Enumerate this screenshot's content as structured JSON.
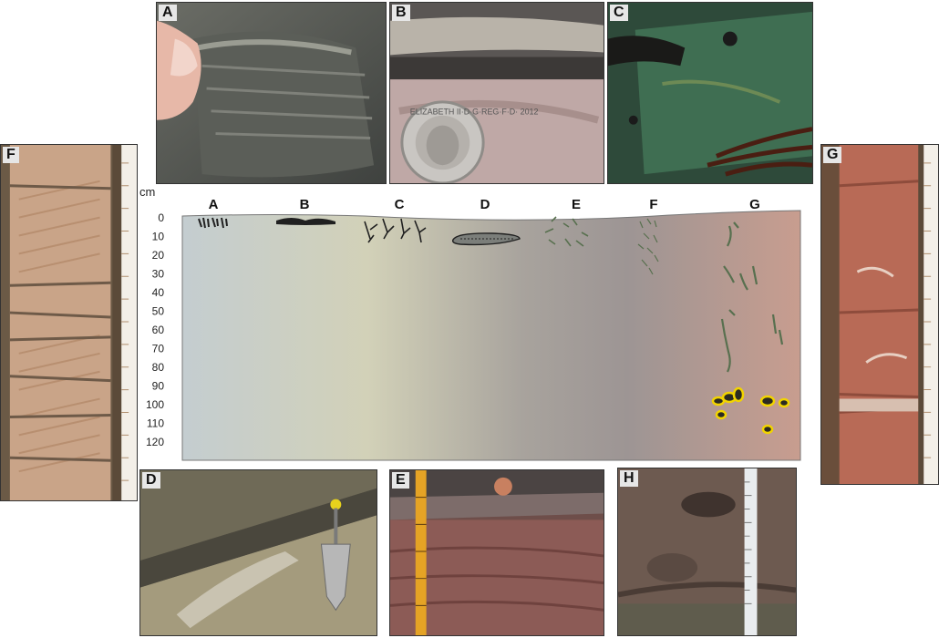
{
  "figure": {
    "photos": [
      {
        "id": "A",
        "label": "A",
        "subject": "fibrous-rock-held-by-finger"
      },
      {
        "id": "B",
        "label": "B",
        "subject": "layered-crust-with-coin"
      },
      {
        "id": "C",
        "label": "C",
        "subject": "green-microbial-surface-with-seaweed"
      },
      {
        "id": "D",
        "label": "D",
        "subject": "exposed-layer-with-trowel"
      },
      {
        "id": "E",
        "label": "E",
        "subject": "red-bed-with-folding-ruler"
      },
      {
        "id": "F",
        "label": "F",
        "subject": "core-box-laminated-sandstone"
      },
      {
        "id": "G",
        "label": "G",
        "subject": "core-box-red-sandstone"
      },
      {
        "id": "H",
        "label": "H",
        "subject": "burrowed-surface-with-scale-bar"
      }
    ],
    "coin_text": "ELIZABETH II·D·G·REG·F·D· 2012",
    "profile": {
      "depth_unit": "cm",
      "depth_ticks": [
        0,
        10,
        20,
        30,
        40,
        50,
        60,
        70,
        80,
        90,
        100,
        110,
        120
      ],
      "columns": [
        "A",
        "B",
        "C",
        "D",
        "E",
        "F",
        "G"
      ],
      "gradient_colors": [
        "#c4cdd0",
        "#d2d1b8",
        "#a8a39d",
        "#9d9594",
        "#c89d8f"
      ],
      "trace_color": "#202020",
      "burrow_color": "#58704f",
      "highlight_color": "#f2d400"
    }
  }
}
